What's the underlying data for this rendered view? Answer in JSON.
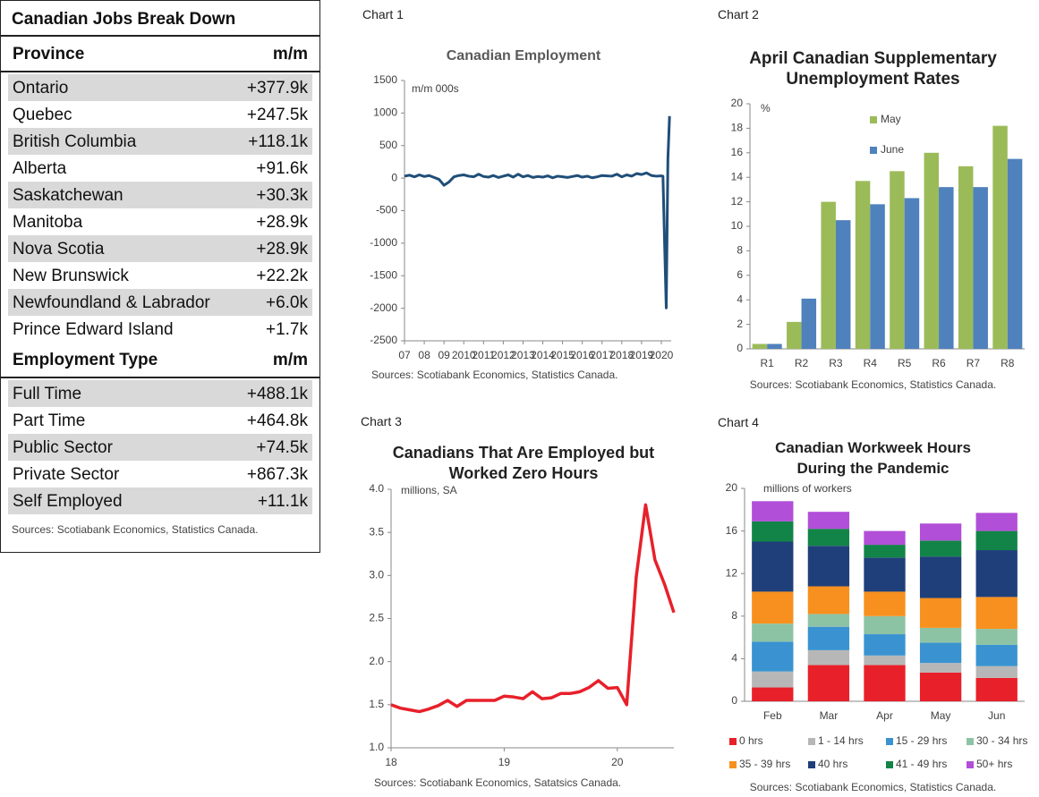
{
  "table": {
    "title": "Canadian Jobs Break Down",
    "sections": [
      {
        "header": [
          "Province",
          "m/m"
        ],
        "rows": [
          [
            "Ontario",
            "+377.9k"
          ],
          [
            "Quebec",
            "+247.5k"
          ],
          [
            "British Columbia",
            "+118.1k"
          ],
          [
            "Alberta",
            "+91.6k"
          ],
          [
            "Saskatchewan",
            "+30.3k"
          ],
          [
            "Manitoba",
            "+28.9k"
          ],
          [
            "Nova Scotia",
            "+28.9k"
          ],
          [
            "New Brunswick",
            "+22.2k"
          ],
          [
            "Newfoundland & Labrador",
            "+6.0k"
          ],
          [
            "Prince Edward Island",
            "+1.7k"
          ]
        ]
      },
      {
        "header": [
          "Employment Type",
          "m/m"
        ],
        "rows": [
          [
            "Full Time",
            "+488.1k"
          ],
          [
            "Part Time",
            "+464.8k"
          ],
          [
            "Public Sector",
            "+74.5k"
          ],
          [
            "Private Sector",
            "+867.3k"
          ],
          [
            "Self Employed",
            "+11.1k"
          ]
        ]
      }
    ],
    "source": "Sources: Scotiabank Economics, Statistics Canada."
  },
  "chart_data": [
    {
      "type": "line",
      "label": "Chart 1",
      "title": "Canadian Employment",
      "y_label": "m/m 000s",
      "x": [
        2007,
        2007.25,
        2007.5,
        2007.75,
        2008,
        2008.25,
        2008.5,
        2008.75,
        2009,
        2009.25,
        2009.5,
        2009.75,
        2010,
        2010.25,
        2010.5,
        2010.75,
        2011,
        2011.25,
        2011.5,
        2011.75,
        2012,
        2012.25,
        2012.5,
        2012.75,
        2013,
        2013.25,
        2013.5,
        2013.75,
        2014,
        2014.25,
        2014.5,
        2014.75,
        2015,
        2015.25,
        2015.5,
        2015.75,
        2016,
        2016.25,
        2016.5,
        2016.75,
        2017,
        2017.25,
        2017.5,
        2017.75,
        2018,
        2018.25,
        2018.5,
        2018.75,
        2019,
        2019.25,
        2019.5,
        2019.75,
        2020,
        2020.083,
        2020.167,
        2020.25,
        2020.333,
        2020.417
      ],
      "values": [
        30,
        45,
        20,
        50,
        25,
        40,
        10,
        -20,
        -110,
        -60,
        20,
        40,
        50,
        30,
        20,
        60,
        25,
        15,
        40,
        10,
        30,
        50,
        15,
        60,
        20,
        40,
        10,
        25,
        15,
        35,
        5,
        30,
        20,
        10,
        25,
        40,
        15,
        30,
        5,
        20,
        40,
        35,
        30,
        60,
        20,
        50,
        30,
        70,
        55,
        80,
        40,
        30,
        35,
        30,
        -1011,
        -1994,
        290,
        953
      ],
      "color": "#1f4e79",
      "xlim": [
        2007,
        2020.5
      ],
      "xticks": [
        {
          "value": 2007,
          "label": "07"
        },
        {
          "value": 2008,
          "label": "08"
        },
        {
          "value": 2009,
          "label": "09"
        },
        2010,
        2011,
        2012,
        2013,
        2014,
        2015,
        2016,
        2017,
        2018,
        2019,
        2020
      ],
      "ylim": [
        -2500,
        1500
      ],
      "yticks": [
        -2500,
        -2000,
        -1500,
        -1000,
        -500,
        0,
        500,
        1000,
        1500
      ],
      "grid": false,
      "source": "Sources: Scotiabank Economics, Statistics Canada."
    },
    {
      "type": "bar",
      "label": "Chart 2",
      "title": "April Canadian Supplementary Unemployment Rates",
      "y_label": "%",
      "categories": [
        "R1",
        "R2",
        "R3",
        "R4",
        "R5",
        "R6",
        "R7",
        "R8"
      ],
      "series": [
        {
          "name": "May",
          "color": "#9bbb59",
          "values": [
            0.4,
            2.2,
            12.0,
            13.7,
            14.5,
            16.0,
            14.9,
            18.2
          ]
        },
        {
          "name": "June",
          "color": "#4f81bd",
          "values": [
            0.4,
            4.1,
            10.5,
            11.8,
            12.3,
            13.2,
            13.2,
            15.5
          ]
        }
      ],
      "ylim": [
        0,
        20
      ],
      "yticks": [
        0,
        2,
        4,
        6,
        8,
        10,
        12,
        14,
        16,
        18,
        20
      ],
      "grid": false,
      "legend": "upper-center",
      "source": "Sources: Scotiabank Economics, Statistics Canada."
    },
    {
      "type": "line",
      "label": "Chart 3",
      "title": "Canadians That Are Employed but Worked Zero Hours",
      "y_label": "millions, SA",
      "x": [
        2018,
        2018.083,
        2018.167,
        2018.25,
        2018.333,
        2018.417,
        2018.5,
        2018.583,
        2018.667,
        2018.75,
        2018.833,
        2018.917,
        2019,
        2019.083,
        2019.167,
        2019.25,
        2019.333,
        2019.417,
        2019.5,
        2019.583,
        2019.667,
        2019.75,
        2019.833,
        2019.917,
        2020,
        2020.083,
        2020.167,
        2020.25,
        2020.333,
        2020.417,
        2020.5
      ],
      "values": [
        1.5,
        1.46,
        1.44,
        1.42,
        1.45,
        1.49,
        1.55,
        1.48,
        1.55,
        1.55,
        1.55,
        1.55,
        1.6,
        1.59,
        1.57,
        1.65,
        1.57,
        1.58,
        1.63,
        1.63,
        1.65,
        1.7,
        1.78,
        1.69,
        1.7,
        1.5,
        2.98,
        3.82,
        3.18,
        2.9,
        2.57
      ],
      "color": "#e8202a",
      "xlim": [
        2018,
        2020.5
      ],
      "xticks": [
        {
          "value": 2018,
          "label": "18"
        },
        {
          "value": 2019,
          "label": "19"
        },
        {
          "value": 2020,
          "label": "20"
        }
      ],
      "ylim": [
        1,
        4
      ],
      "yticks": [
        {
          "value": 1,
          "label": "1.0"
        },
        1.5,
        {
          "value": 2,
          "label": "2.0"
        },
        2.5,
        {
          "value": 3,
          "label": "3.0"
        },
        3.5,
        {
          "value": 4,
          "label": "4.0"
        }
      ],
      "grid": false,
      "source": "Sources: Scotiabank Economics, Satatsics Canada."
    },
    {
      "type": "bar",
      "stacked": true,
      "label": "Chart 4",
      "title": "Canadian Workweek Hours During the Pandemic",
      "y_label": "millions of workers",
      "categories": [
        "Feb",
        "Mar",
        "Apr",
        "May",
        "Jun"
      ],
      "series": [
        {
          "name": "0 hrs",
          "color": "#e8202a",
          "values": [
            1.3,
            3.4,
            3.4,
            2.7,
            2.2
          ]
        },
        {
          "name": "1 - 14 hrs",
          "color": "#b7b7b7",
          "values": [
            1.5,
            1.4,
            0.9,
            0.9,
            1.1
          ]
        },
        {
          "name": "15 - 29 hrs",
          "color": "#3a93d0",
          "values": [
            2.8,
            2.2,
            2.0,
            1.9,
            2.0
          ]
        },
        {
          "name": "30 - 34 hrs",
          "color": "#8dc3a5",
          "values": [
            1.7,
            1.2,
            1.7,
            1.4,
            1.5
          ]
        },
        {
          "name": "35 - 39 hrs",
          "color": "#f7901e",
          "values": [
            3.0,
            2.6,
            2.3,
            2.8,
            3.0
          ]
        },
        {
          "name": "40 hrs",
          "color": "#1f3f7a",
          "values": [
            4.7,
            3.8,
            3.2,
            3.9,
            4.4
          ]
        },
        {
          "name": "41 - 49 hrs",
          "color": "#128447",
          "values": [
            1.9,
            1.6,
            1.2,
            1.5,
            1.8
          ]
        },
        {
          "name": "50+ hrs",
          "color": "#b14fd8",
          "values": [
            1.9,
            1.6,
            1.3,
            1.6,
            1.7
          ]
        }
      ],
      "ylim": [
        0,
        20
      ],
      "yticks": [
        0,
        4,
        8,
        12,
        16,
        20
      ],
      "grid": false,
      "legend": "bottom",
      "source": "Sources: Scotiabank Economics, Statistics Canada."
    }
  ]
}
